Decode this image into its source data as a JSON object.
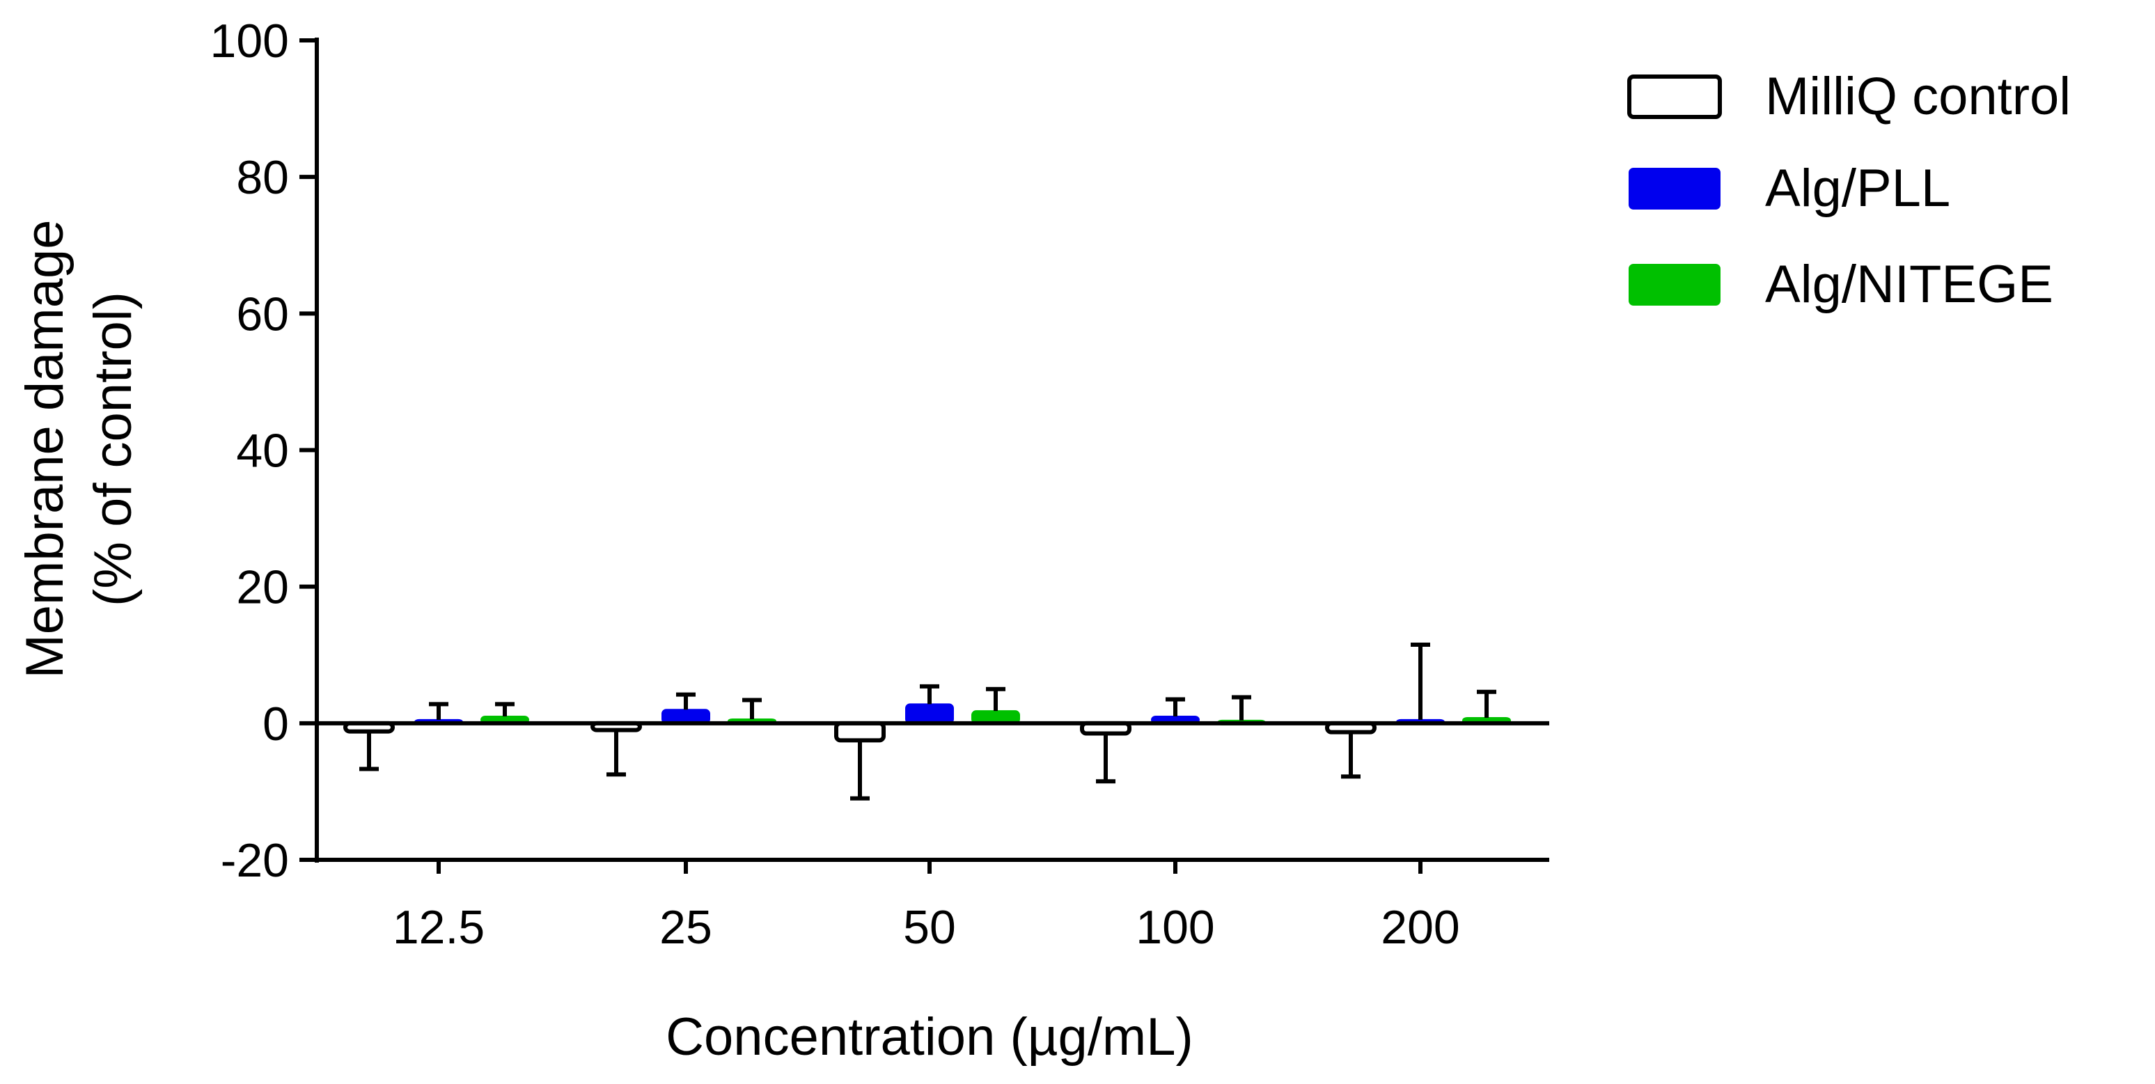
{
  "chart_data": {
    "type": "bar",
    "title": "",
    "xlabel": "Concentration (µg/mL)",
    "ylabel_line1": "Membrane damage",
    "ylabel_line2": "(% of control)",
    "categories": [
      "12.5",
      "25",
      "50",
      "100",
      "200"
    ],
    "ylim": [
      -20,
      100
    ],
    "yticks": [
      -20,
      0,
      20,
      40,
      60,
      80,
      100
    ],
    "ytick_labels": [
      "-20",
      "0",
      "20",
      "40",
      "60",
      "80",
      "100"
    ],
    "legend_position": "top-right",
    "series": [
      {
        "name": "MilliQ control",
        "color": "#ffffff",
        "stroke": "#000000",
        "values": [
          -1.2,
          -1.0,
          -2.5,
          -1.5,
          -1.3
        ],
        "errors": [
          5.5,
          6.5,
          8.5,
          7.0,
          6.5
        ]
      },
      {
        "name": "Alg/PLL",
        "color": "#0000ee",
        "stroke": "#0000ee",
        "values": [
          0.5,
          2.0,
          2.8,
          1.0,
          0.5
        ],
        "errors": [
          2.3,
          2.2,
          2.6,
          2.5,
          11.0
        ]
      },
      {
        "name": "Alg/NITEGE",
        "color": "#00c000",
        "stroke": "#00c000",
        "values": [
          1.0,
          0.6,
          1.8,
          0.4,
          0.8
        ],
        "errors": [
          1.8,
          2.8,
          3.2,
          3.4,
          3.8
        ]
      }
    ]
  }
}
